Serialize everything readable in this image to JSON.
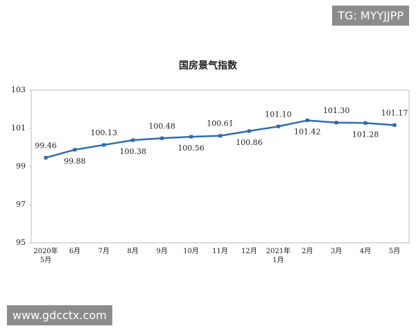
{
  "chart_data": {
    "type": "line",
    "title": "国房景气指数",
    "categories": [
      "2020年\n5月",
      "6月",
      "7月",
      "8月",
      "9月",
      "10月",
      "11月",
      "12月",
      "2021年\n1月",
      "2月",
      "3月",
      "4月",
      "5月"
    ],
    "series": [
      {
        "name": "国房景气指数",
        "color": "#2e6bb0",
        "values": [
          99.46,
          99.88,
          100.13,
          100.38,
          100.48,
          100.56,
          100.61,
          100.86,
          101.1,
          101.42,
          101.3,
          101.28,
          101.17
        ],
        "value_labels": [
          "99.46",
          "99.88",
          "100.13",
          "100.38",
          "100.48",
          "100.56",
          "100.61",
          "100.86",
          "101.10",
          "101.42",
          "101.30",
          "101.28",
          "101.17"
        ]
      }
    ],
    "ylim": [
      95,
      103
    ],
    "yticks": [
      95,
      97,
      99,
      101,
      103
    ],
    "grid": false
  },
  "watermarks": [
    "TG: MYYJJPP",
    "www.gdcctx.com"
  ]
}
